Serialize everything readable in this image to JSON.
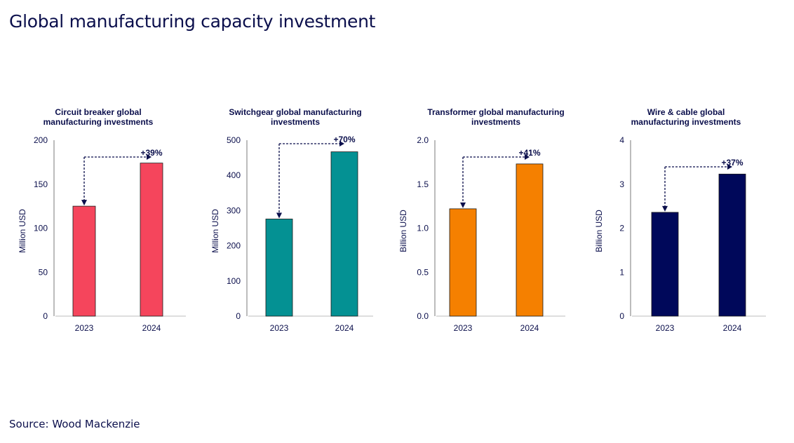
{
  "page": {
    "title": "Global manufacturing capacity investment",
    "source": "Source: Wood Mackenzie"
  },
  "chart_data": [
    {
      "type": "bar",
      "title": [
        "Circuit breaker global",
        "manufacturing investments"
      ],
      "ylabel": "Million USD",
      "categories": [
        "2023",
        "2024"
      ],
      "values": [
        125,
        174
      ],
      "ylim": [
        0,
        200
      ],
      "yticks": [
        0,
        50,
        100,
        150,
        200
      ],
      "tick_labels": [
        "0",
        "50",
        "100",
        "150",
        "200"
      ],
      "color": "#f5455c",
      "annotation": "+39%"
    },
    {
      "type": "bar",
      "title": [
        "Switchgear global manufacturing",
        "investments"
      ],
      "ylabel": "Million USD",
      "categories": [
        "2023",
        "2024"
      ],
      "values": [
        276,
        467
      ],
      "ylim": [
        0,
        500
      ],
      "yticks": [
        0,
        100,
        200,
        300,
        400,
        500
      ],
      "tick_labels": [
        "0",
        "100",
        "200",
        "300",
        "400",
        "500"
      ],
      "color": "#049193",
      "annotation": "+70%"
    },
    {
      "type": "bar",
      "title": [
        "Transformer global manufacturing",
        "investments"
      ],
      "ylabel": "Billion USD",
      "categories": [
        "2023",
        "2024"
      ],
      "values": [
        1.22,
        1.73
      ],
      "ylim": [
        0,
        2
      ],
      "yticks": [
        0,
        0.5,
        1,
        1.5,
        2
      ],
      "tick_labels": [
        "0.0",
        "0.5",
        "1.0",
        "1.5",
        "2.0"
      ],
      "color": "#f58000",
      "annotation": "+41%"
    },
    {
      "type": "bar",
      "title": [
        "Wire & cable global",
        "manufacturing investments"
      ],
      "ylabel": "Billion USD",
      "categories": [
        "2023",
        "2024"
      ],
      "values": [
        2.36,
        3.23
      ],
      "ylim": [
        0,
        4
      ],
      "yticks": [
        0,
        1,
        2,
        3,
        4
      ],
      "tick_labels": [
        "0",
        "1",
        "2",
        "3",
        "4"
      ],
      "color": "#00085a",
      "annotation": "+37%"
    }
  ]
}
